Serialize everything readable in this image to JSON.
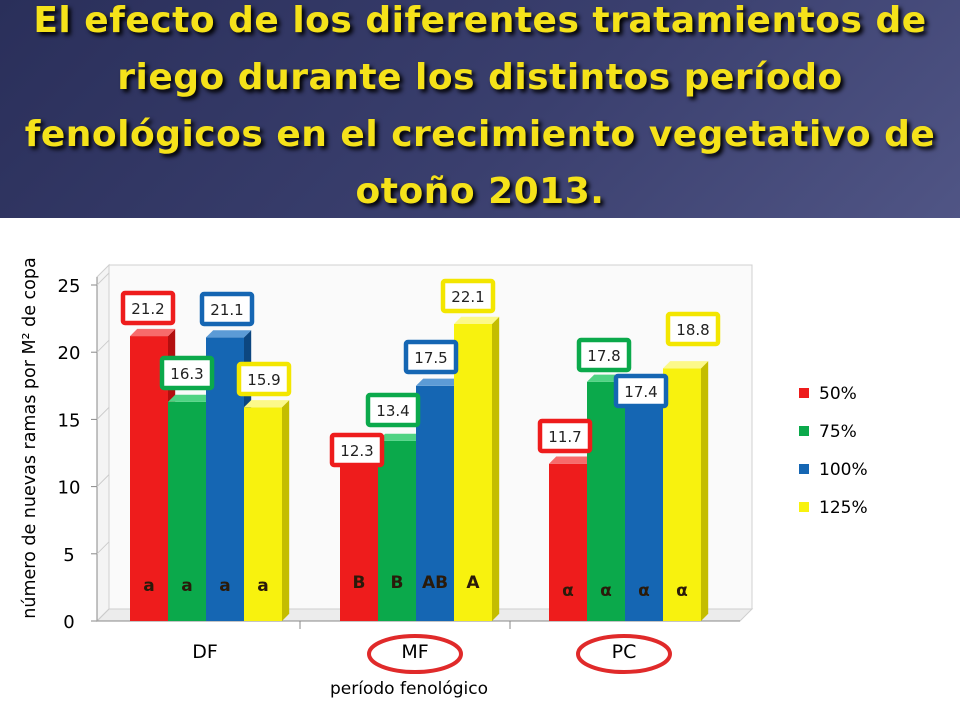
{
  "slide": {
    "title": "El efecto de los diferentes tratamientos de riego durante los distintos período fenológicos en el crecimiento vegetativo de otoño 2013."
  },
  "colors": {
    "header_bg": "#363b66",
    "title": "#f5e21a",
    "s50": "#ee1c1c",
    "s75": "#0ba94b",
    "s100": "#1566b3",
    "s125": "#f8f20e",
    "highlight_ring": "#e02a2a"
  },
  "chart_data": {
    "type": "bar",
    "categories": [
      "DF",
      "MF",
      "PC"
    ],
    "series": [
      {
        "name": "50%",
        "values": [
          21.2,
          12.3,
          11.7
        ]
      },
      {
        "name": "75%",
        "values": [
          16.3,
          13.4,
          17.8
        ]
      },
      {
        "name": "100%",
        "values": [
          21.1,
          17.5,
          17.4
        ]
      },
      {
        "name": "125%",
        "values": [
          15.9,
          22.1,
          18.8
        ]
      }
    ],
    "data_labels": [
      [
        "21.2",
        "16.3",
        "21.1",
        "15.9"
      ],
      [
        "12.3",
        "13.4",
        "17.5",
        "22.1"
      ],
      [
        "11.7",
        "17.8",
        "17.4",
        "18.8"
      ]
    ],
    "significance_letters": [
      [
        "a",
        "a",
        "a",
        "a"
      ],
      [
        "B",
        "B",
        "AB",
        "A"
      ],
      [
        "α",
        "α",
        "α",
        "α"
      ]
    ],
    "ylabel": "número de nuevas ramas por M² de copa",
    "xlabel": "período fenológico",
    "ylim": [
      0,
      25
    ],
    "yticks": [
      0,
      5,
      10,
      15,
      20,
      25
    ],
    "legend_position": "right",
    "highlighted_categories": [
      "MF",
      "PC"
    ],
    "grid": false
  }
}
